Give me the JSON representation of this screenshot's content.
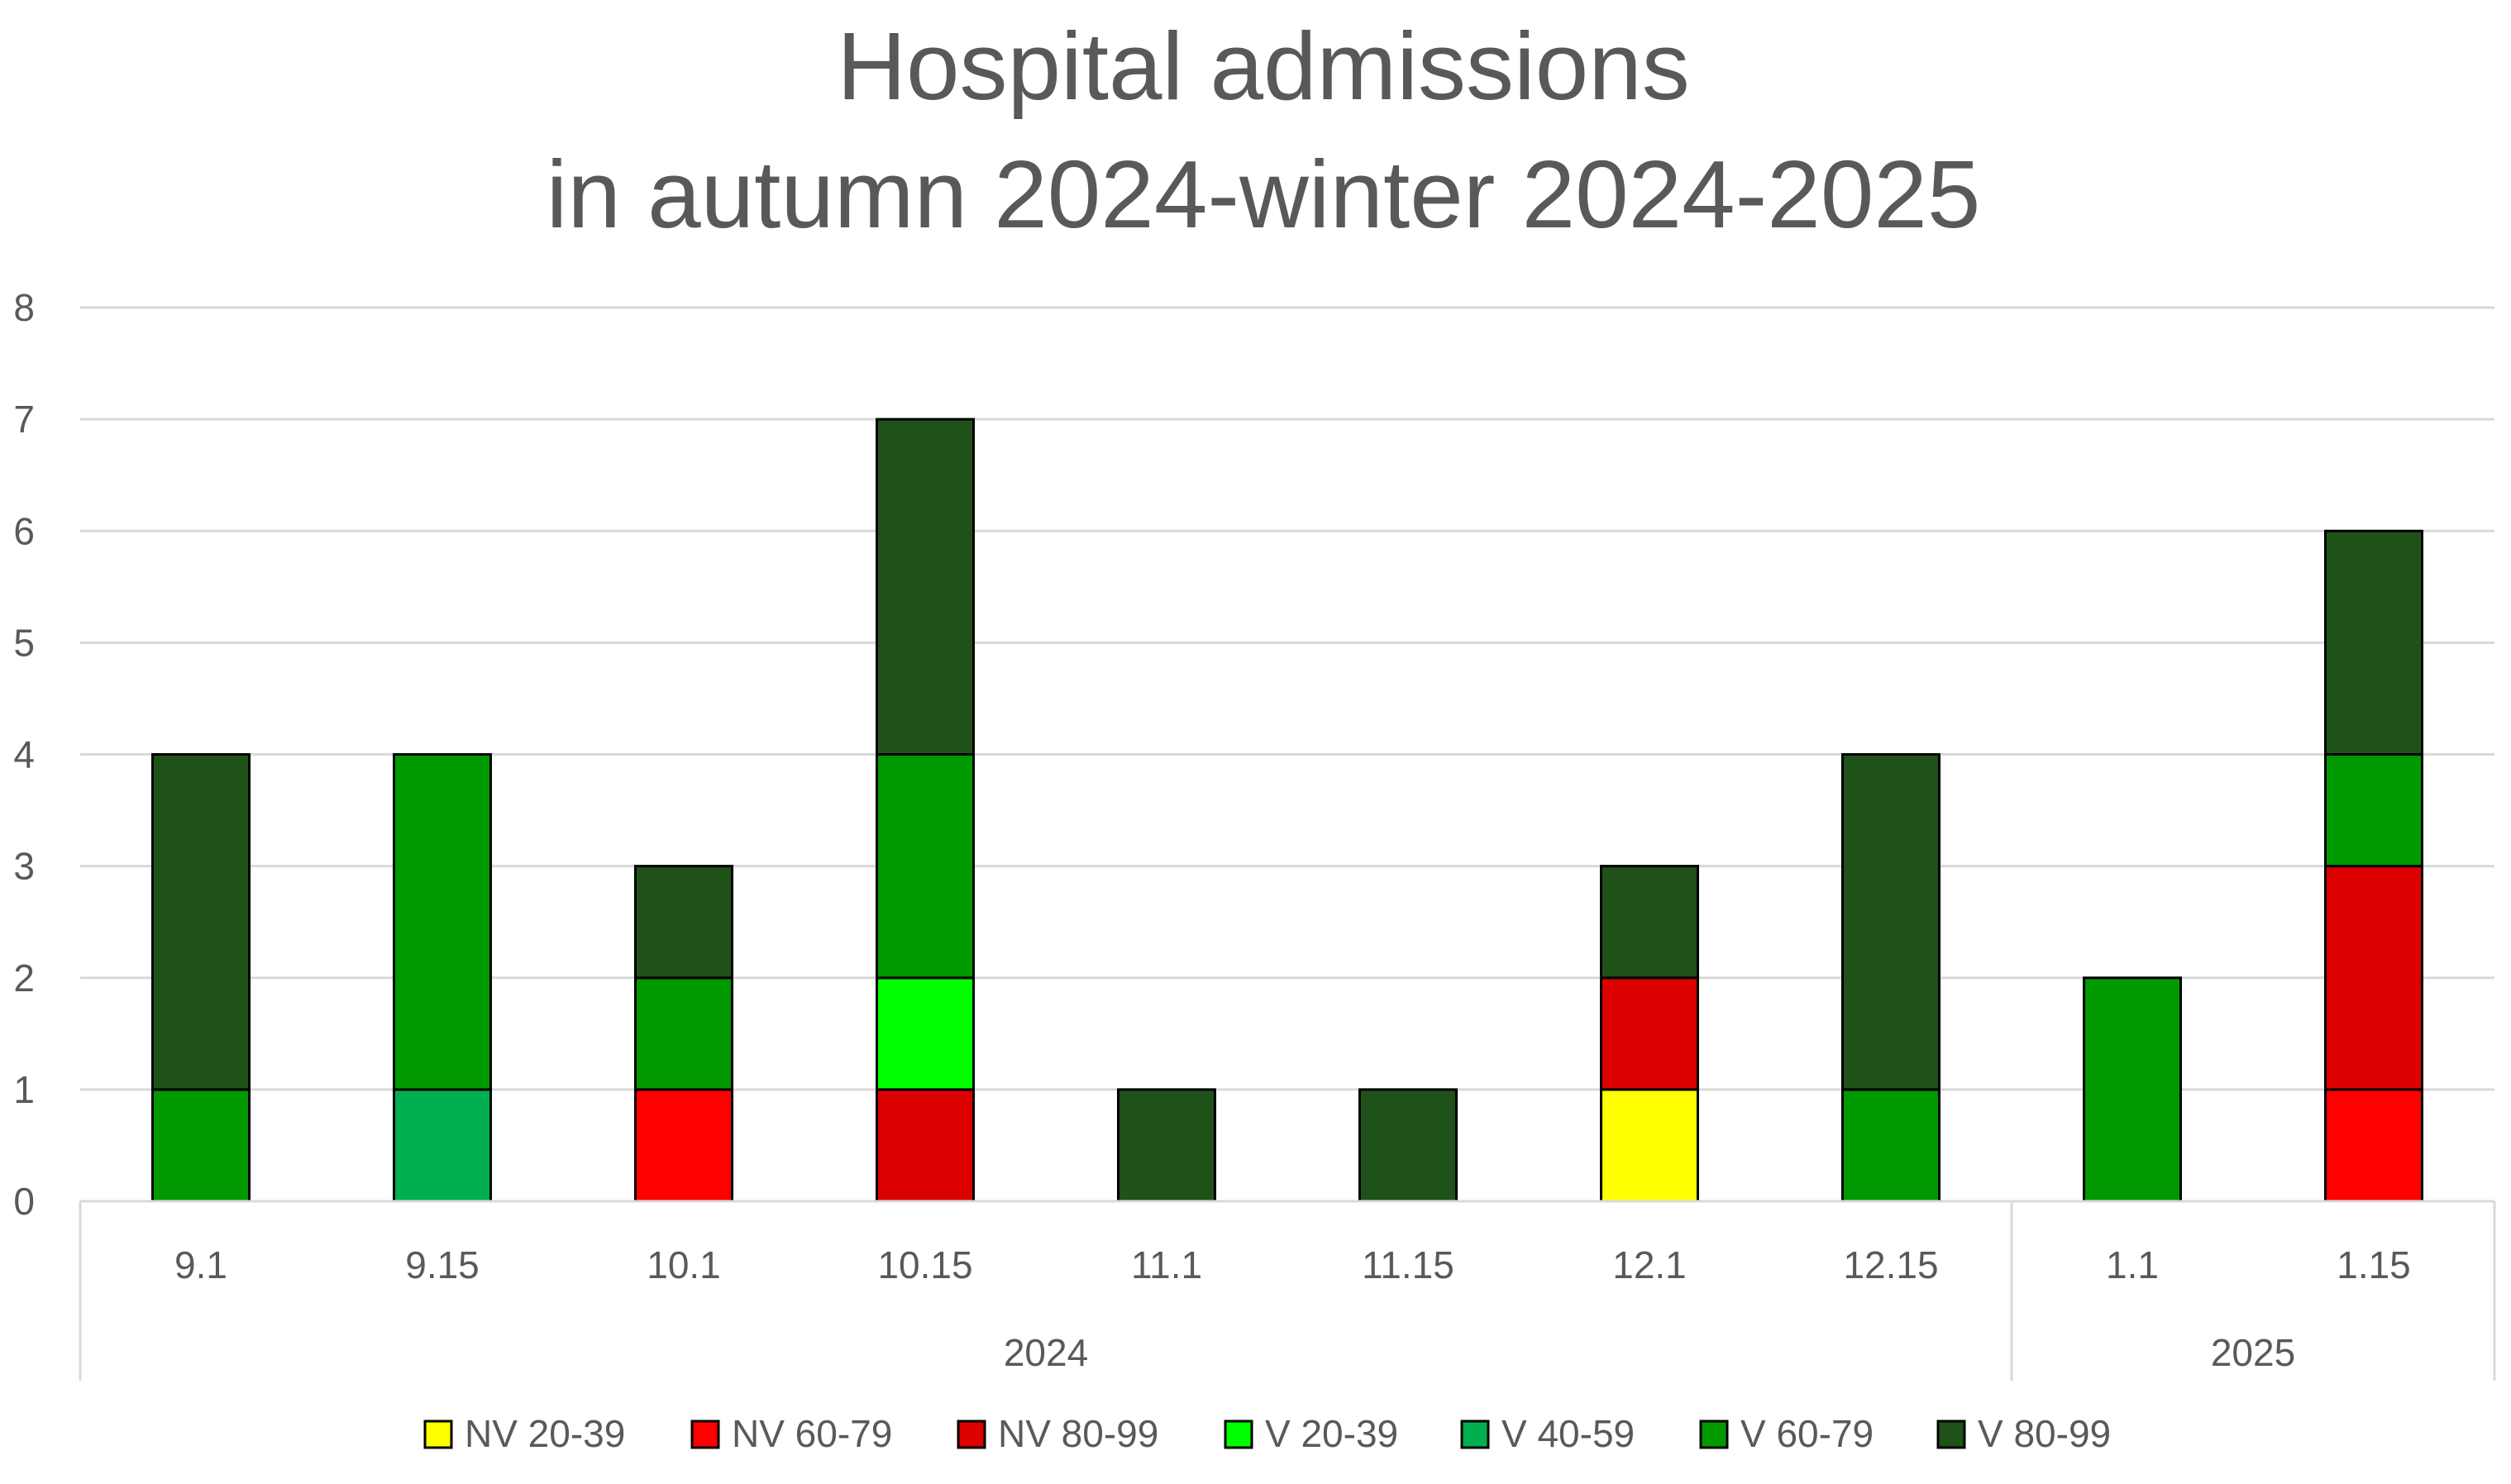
{
  "chart_data": {
    "type": "bar",
    "stacked": true,
    "title": [
      "Hospital admissions",
      "in autumn 2024-winter 2024-2025"
    ],
    "xlabel": "",
    "ylabel": "",
    "ylim": [
      0,
      8
    ],
    "yticks": [
      0,
      1,
      2,
      3,
      4,
      5,
      6,
      7,
      8
    ],
    "grid": true,
    "legend_position": "bottom",
    "categories": [
      "9.1",
      "9.15",
      "10.1",
      "10.15",
      "11.1",
      "11.15",
      "12.1",
      "12.15",
      "1.1",
      "1.15"
    ],
    "groups": [
      {
        "label": "2024",
        "categories": [
          "9.1",
          "9.15",
          "10.1",
          "10.15",
          "11.1",
          "11.15",
          "12.1",
          "12.15"
        ]
      },
      {
        "label": "2025",
        "categories": [
          "1.1",
          "1.15"
        ]
      }
    ],
    "series": [
      {
        "name": "NV 20-39",
        "color": "#FFFF00",
        "values": [
          0,
          0,
          0,
          0,
          0,
          0,
          1,
          0,
          0,
          0
        ]
      },
      {
        "name": "NV 60-79",
        "color": "#FF0000",
        "values": [
          0,
          0,
          1,
          0,
          0,
          0,
          0,
          0,
          0,
          1
        ]
      },
      {
        "name": "NV 80-99",
        "color": "#DD0000",
        "values": [
          0,
          0,
          0,
          1,
          0,
          0,
          1,
          0,
          0,
          2
        ]
      },
      {
        "name": "V 20-39",
        "color": "#00FF00",
        "values": [
          0,
          0,
          0,
          1,
          0,
          0,
          0,
          0,
          0,
          0
        ]
      },
      {
        "name": "V 40-59",
        "color": "#00B050",
        "values": [
          0,
          1,
          0,
          0,
          0,
          0,
          0,
          0,
          0,
          0
        ]
      },
      {
        "name": "V 60-79",
        "color": "#009900",
        "values": [
          1,
          3,
          1,
          2,
          0,
          0,
          0,
          1,
          2,
          1
        ]
      },
      {
        "name": "V 80-99",
        "color": "#1F5218",
        "values": [
          3,
          0,
          1,
          3,
          1,
          1,
          1,
          3,
          0,
          2
        ]
      }
    ]
  }
}
